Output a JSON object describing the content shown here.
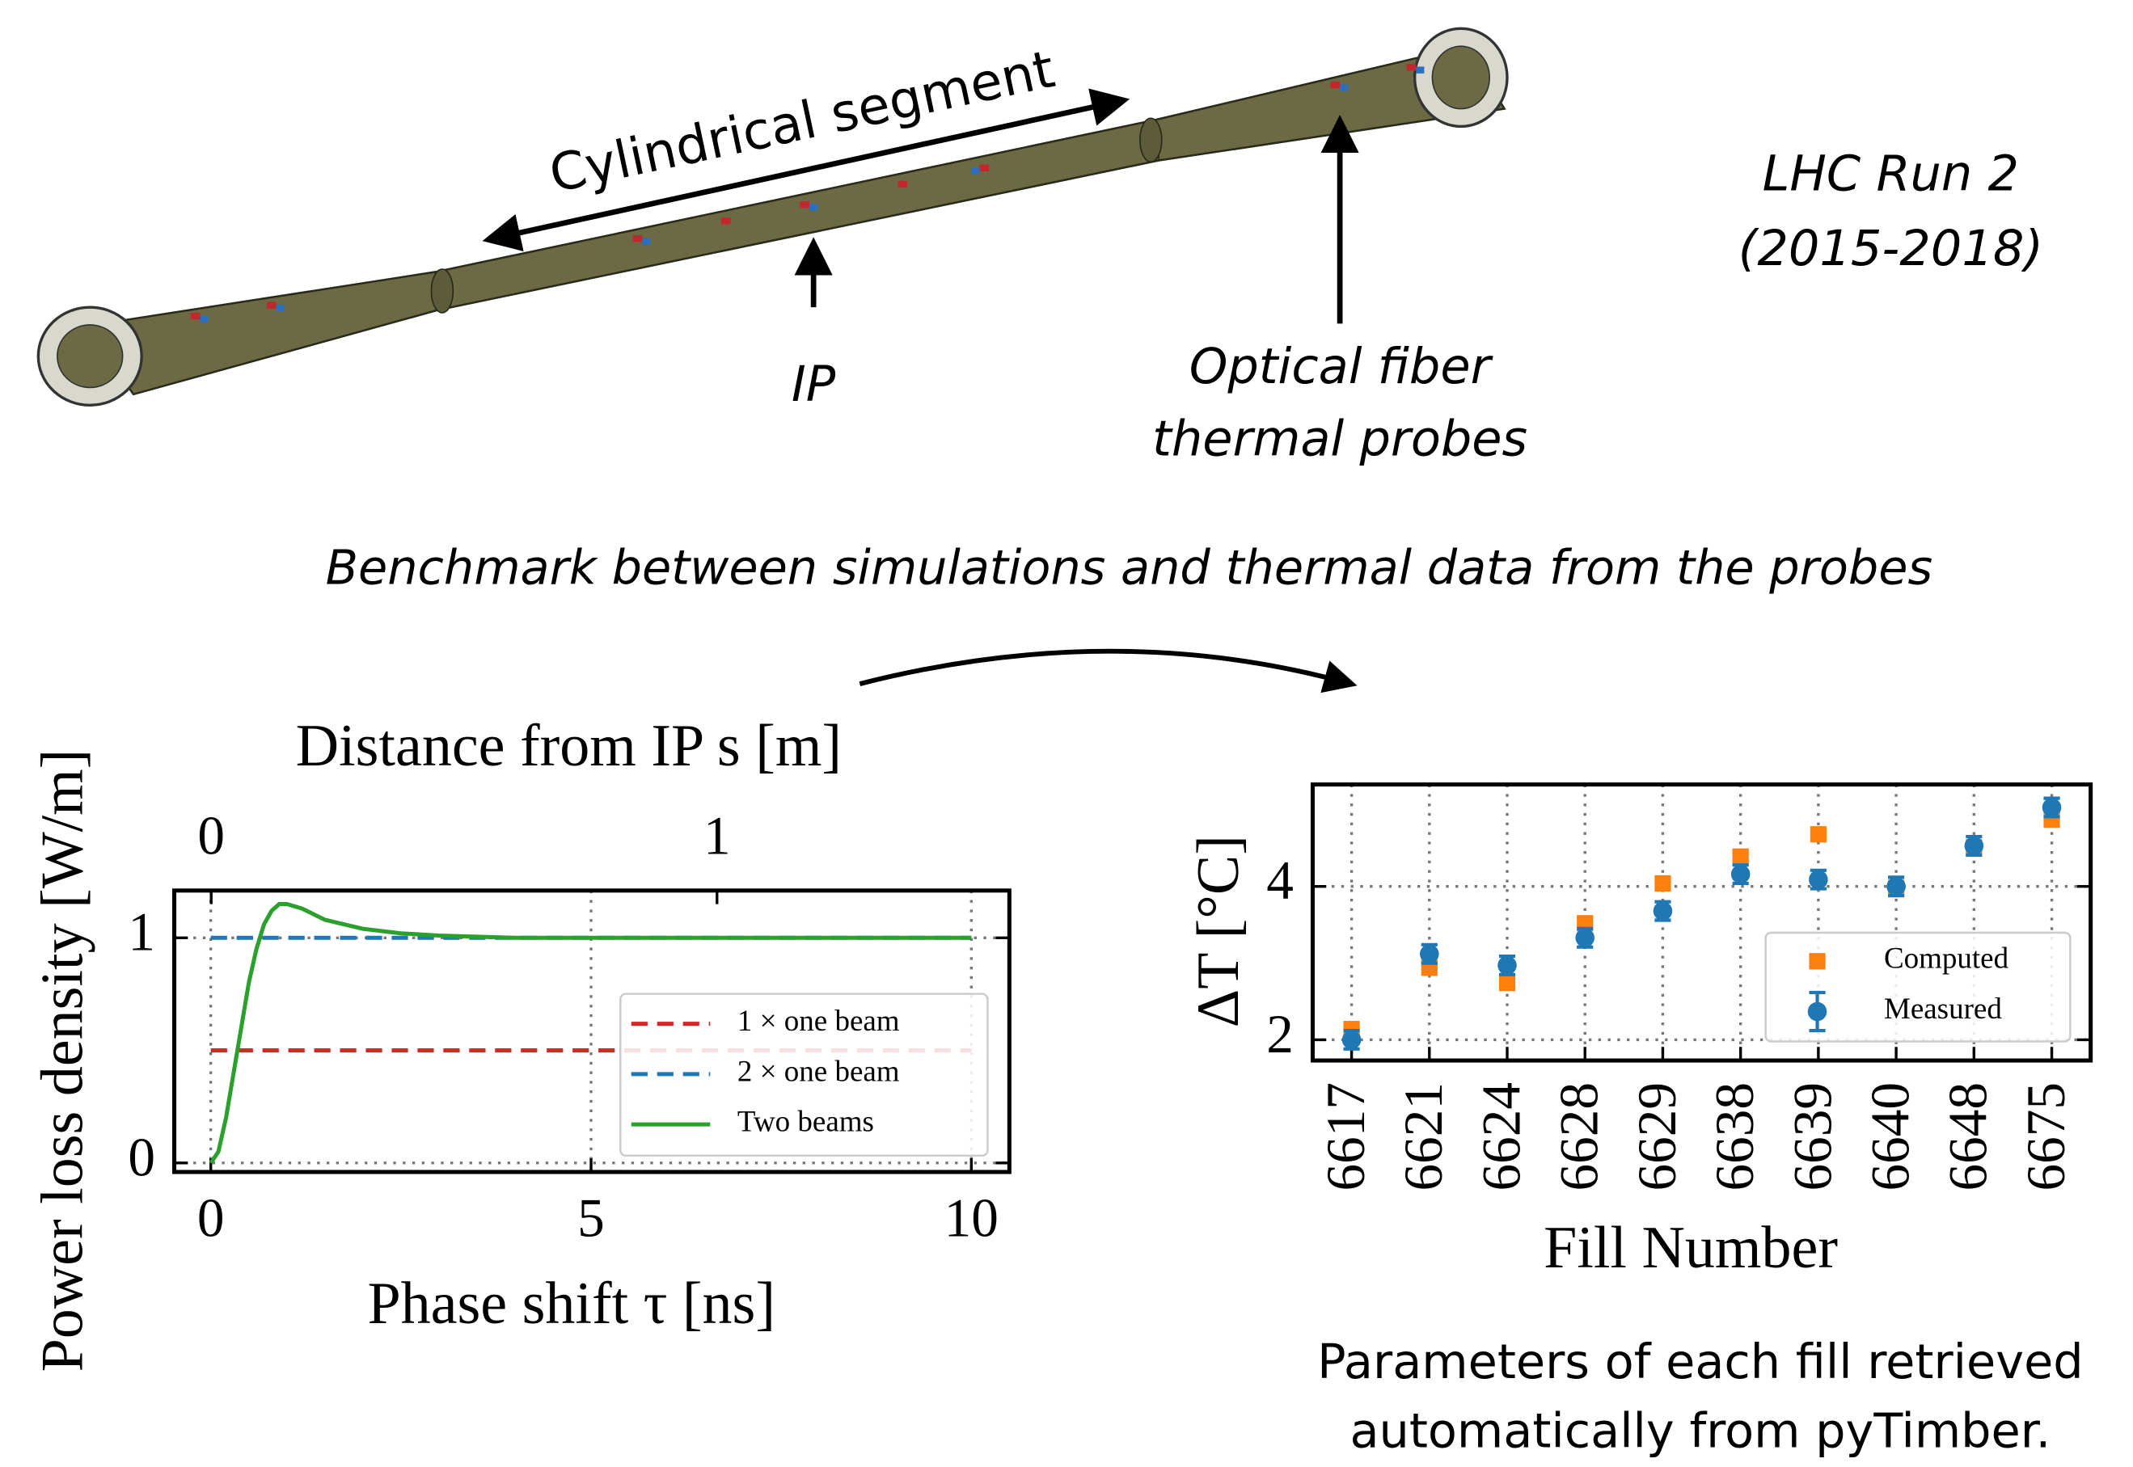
{
  "diagram": {
    "segment_label": "Cylindrical segment",
    "ip_label": "IP",
    "probe_label": [
      "Optical fiber",
      "thermal probes"
    ],
    "run_label": [
      "LHC Run 2",
      "(2015-2018)"
    ],
    "benchmark_label": "Benchmark between simulations and thermal data from the probes",
    "parameters_label": [
      "Parameters of each fill retrieved",
      "automatically from pyTimber."
    ]
  },
  "chart_data": [
    {
      "type": "line",
      "xlabel": "Phase shift τ [ns]",
      "ylabel": "Power loss density [W/m]",
      "top_xlabel": "Distance from IP s [m]",
      "xlim": [
        -0.48,
        10.5
      ],
      "xticks": [
        0,
        5,
        10
      ],
      "ylim": [
        -0.04,
        1.21
      ],
      "yticks": [
        0,
        1
      ],
      "top_xlim": [
        -0.073,
        1.578
      ],
      "top_xticks": [
        0,
        1
      ],
      "grid": true,
      "legend": "lower right",
      "series": [
        {
          "name": "1 × one beam",
          "color": "#d62728",
          "linestyle": "dashed",
          "x": [
            0,
            10
          ],
          "values": [
            0.5,
            0.5
          ]
        },
        {
          "name": "2 × one beam",
          "color": "#1f77b4",
          "linestyle": "dashed",
          "x": [
            0,
            10
          ],
          "values": [
            1,
            1
          ]
        },
        {
          "name": "Two beams",
          "color": "#2ca02c",
          "linestyle": "solid",
          "x": [
            0,
            0.1,
            0.2,
            0.3,
            0.4,
            0.5,
            0.6,
            0.7,
            0.8,
            0.9,
            1.0,
            1.2,
            1.5,
            2,
            2.5,
            3,
            4,
            5,
            6,
            8,
            10
          ],
          "values": [
            0,
            0.05,
            0.2,
            0.4,
            0.6,
            0.8,
            0.95,
            1.06,
            1.12,
            1.15,
            1.15,
            1.13,
            1.08,
            1.04,
            1.02,
            1.01,
            1.0,
            1.0,
            1.0,
            1.0,
            1.0
          ]
        }
      ]
    },
    {
      "type": "scatter",
      "xlabel": "Fill Number",
      "ylabel": "ΔT [°C]",
      "categories": [
        "6617",
        "6621",
        "6624",
        "6628",
        "6629",
        "6638",
        "6639",
        "6640",
        "6648",
        "6675"
      ],
      "ylim": [
        1.73,
        5.33
      ],
      "yticks": [
        2,
        4
      ],
      "grid": true,
      "legend": "lower right",
      "series": [
        {
          "name": "Computed",
          "color": "#ff7f0e",
          "marker": "square",
          "values": [
            2.14,
            2.94,
            2.74,
            3.52,
            4.04,
            4.39,
            4.68,
            3.98,
            4.51,
            4.87
          ]
        },
        {
          "name": "Measured",
          "color": "#1f77b4",
          "marker": "circle",
          "values": [
            2.0,
            3.12,
            2.97,
            3.33,
            3.68,
            4.16,
            4.09,
            4.0,
            4.53,
            5.03
          ],
          "errors": [
            0.12,
            0.12,
            0.12,
            0.12,
            0.12,
            0.12,
            0.12,
            0.12,
            0.12,
            0.12
          ]
        }
      ]
    }
  ]
}
